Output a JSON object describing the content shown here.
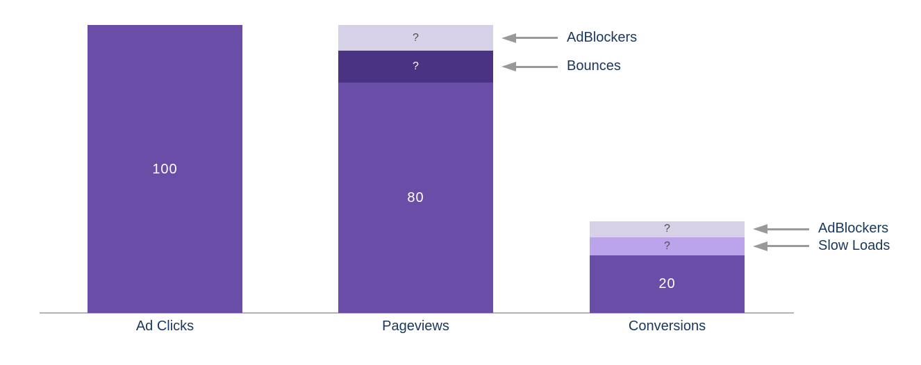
{
  "chart_data": {
    "type": "bar",
    "stacked": true,
    "title": "",
    "xlabel": "",
    "ylabel": "",
    "ylim": [
      0,
      100
    ],
    "grid": false,
    "legend": "none",
    "categories": [
      "Ad Clicks",
      "Pageviews",
      "Conversions"
    ],
    "bars": [
      {
        "category": "Ad Clicks",
        "total_shown": "100",
        "segments": [
          {
            "id": "ad-clicks",
            "display_label": "100",
            "units": 100,
            "units_estimated": false,
            "color": "#694DA7",
            "label_color": "#FFFFFF"
          }
        ]
      },
      {
        "category": "Pageviews",
        "total_shown": "80",
        "segments": [
          {
            "id": "pageviews",
            "display_label": "80",
            "units": 80,
            "units_estimated": false,
            "color": "#694DA7",
            "label_color": "#FFFFFF"
          },
          {
            "id": "bounces",
            "display_label": "?",
            "units": 11,
            "units_estimated": true,
            "color": "#4B3383",
            "label_color": "#FFFFFF",
            "annotation": "Bounces"
          },
          {
            "id": "adblockers",
            "display_label": "?",
            "units": 9,
            "units_estimated": true,
            "color": "#D6D1E7",
            "label_color": "#4D4D4D",
            "annotation": "AdBlockers"
          }
        ]
      },
      {
        "category": "Conversions",
        "total_shown": "20",
        "segments": [
          {
            "id": "conversions",
            "display_label": "20",
            "units": 20,
            "units_estimated": false,
            "color": "#694DA7",
            "label_color": "#FFFFFF"
          },
          {
            "id": "slow-loads",
            "display_label": "?",
            "units": 6.3,
            "units_estimated": true,
            "color": "#BCA4EC",
            "label_color": "#4D4D4D",
            "annotation": "Slow Loads"
          },
          {
            "id": "adblockers",
            "display_label": "?",
            "units": 5.5,
            "units_estimated": true,
            "color": "#D6D1E7",
            "label_color": "#4D4D4D",
            "annotation": "AdBlockers"
          }
        ]
      }
    ],
    "annotations": [
      "AdBlockers",
      "Bounces",
      "AdBlockers",
      "Slow Loads"
    ],
    "style": {
      "background": "#FFFFFF",
      "bar_main_color": "#694DA7",
      "bounces_color": "#4B3383",
      "adblockers_color": "#D6D1E7",
      "slow_loads_color": "#BCA4EC",
      "category_label_color": "#17375D",
      "annotation_label_color": "#17375D",
      "arrow_color": "#999999",
      "axis_line_color": "#B4B2B8",
      "value_label_color": "#FFFFFF",
      "question_mark_color_on_light": "#4D4D4D"
    }
  }
}
